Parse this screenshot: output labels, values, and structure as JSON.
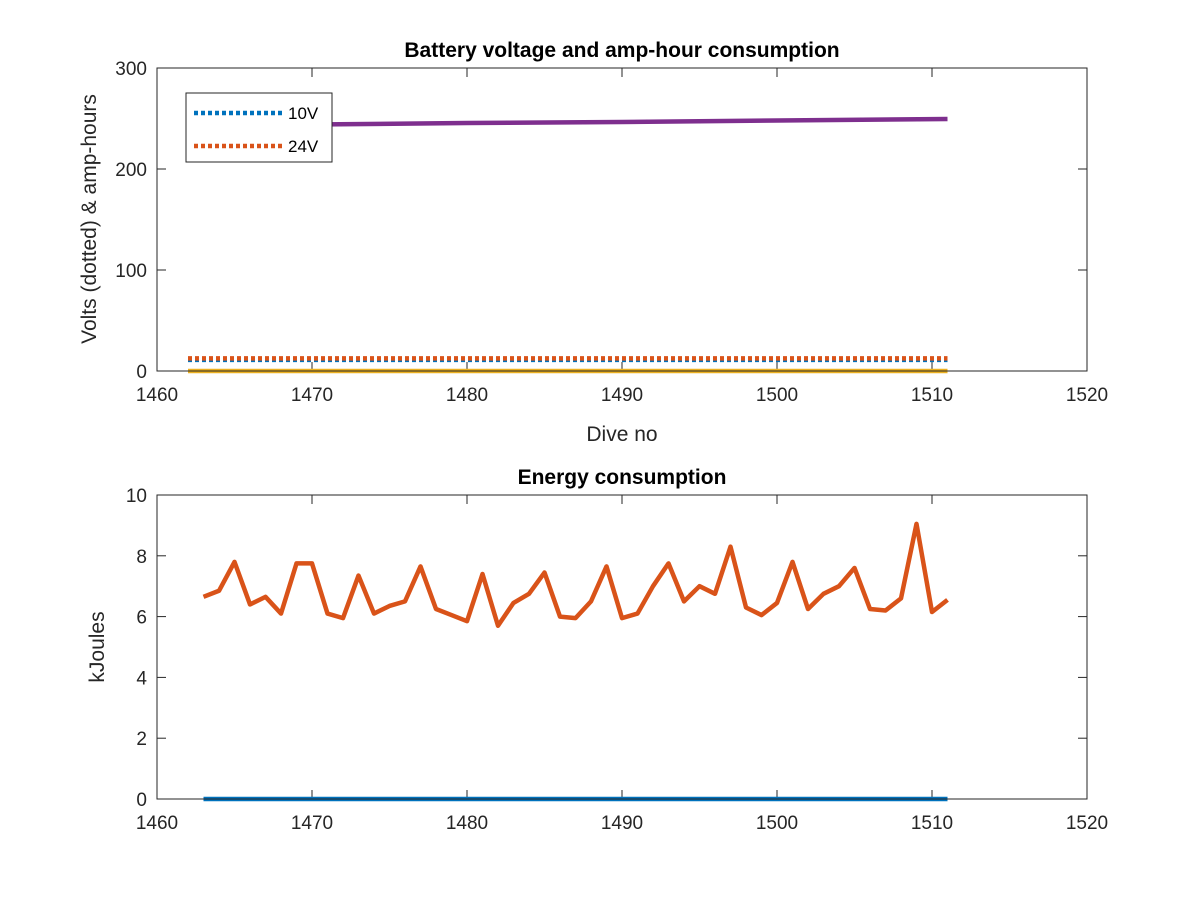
{
  "chart_data": [
    {
      "type": "line",
      "title": "Battery voltage and amp-hour consumption",
      "xlabel": "Dive no",
      "ylabel": "Volts (dotted) & amp-hours",
      "xlim": [
        1460,
        1520
      ],
      "ylim": [
        0,
        300
      ],
      "xticks": [
        "1460",
        "1470",
        "1480",
        "1490",
        "1500",
        "1510",
        "1520"
      ],
      "yticks": [
        "0",
        "100",
        "200",
        "300"
      ],
      "legend_position": "top-left",
      "grid": false,
      "series": [
        {
          "name": "10V",
          "style": "dotted",
          "color": "#0072BD",
          "x": [
            1462,
            1511
          ],
          "values": [
            11,
            11
          ]
        },
        {
          "name": "24V",
          "style": "dotted",
          "color": "#D95319",
          "x": [
            1462,
            1511
          ],
          "values": [
            12.5,
            12.5
          ]
        },
        {
          "style": "solid",
          "color": "#7E2F8E",
          "x": [
            1462,
            1470,
            1480,
            1490,
            1500,
            1511
          ],
          "values": [
            243,
            244,
            245.5,
            246.5,
            248,
            249.5
          ]
        },
        {
          "style": "solid",
          "color": "#EDB120",
          "x": [
            1462,
            1511
          ],
          "values": [
            0,
            0
          ]
        }
      ]
    },
    {
      "type": "line",
      "title": "Energy consumption",
      "xlabel": "",
      "ylabel": "kJoules",
      "xlim": [
        1460,
        1520
      ],
      "ylim": [
        0,
        10
      ],
      "xticks": [
        "1460",
        "1470",
        "1480",
        "1490",
        "1500",
        "1510",
        "1520"
      ],
      "yticks": [
        "0",
        "2",
        "4",
        "6",
        "8",
        "10"
      ],
      "grid": false,
      "series": [
        {
          "style": "solid",
          "color": "#0072BD",
          "x": [
            1463,
            1511
          ],
          "values": [
            0,
            0
          ]
        },
        {
          "style": "solid",
          "color": "#D95319",
          "x": [
            1463,
            1464,
            1465,
            1466,
            1467,
            1468,
            1469,
            1470,
            1471,
            1472,
            1473,
            1474,
            1475,
            1476,
            1477,
            1478,
            1479,
            1480,
            1481,
            1482,
            1483,
            1484,
            1485,
            1486,
            1487,
            1488,
            1489,
            1490,
            1491,
            1492,
            1493,
            1494,
            1495,
            1496,
            1497,
            1498,
            1499,
            1500,
            1501,
            1502,
            1503,
            1504,
            1505,
            1506,
            1507,
            1508,
            1509,
            1510,
            1511
          ],
          "values": [
            6.65,
            6.85,
            7.8,
            6.4,
            6.65,
            6.1,
            7.75,
            7.75,
            6.1,
            5.95,
            7.35,
            6.1,
            6.35,
            6.5,
            7.65,
            6.25,
            6.05,
            5.85,
            7.4,
            5.7,
            6.45,
            6.75,
            7.45,
            6.0,
            5.95,
            6.5,
            7.65,
            5.95,
            6.1,
            7.0,
            7.75,
            6.5,
            7.0,
            6.75,
            8.3,
            6.3,
            6.05,
            6.45,
            7.8,
            6.25,
            6.75,
            7.0,
            7.6,
            6.25,
            6.2,
            6.6,
            9.05,
            6.15,
            6.55
          ]
        }
      ]
    }
  ]
}
